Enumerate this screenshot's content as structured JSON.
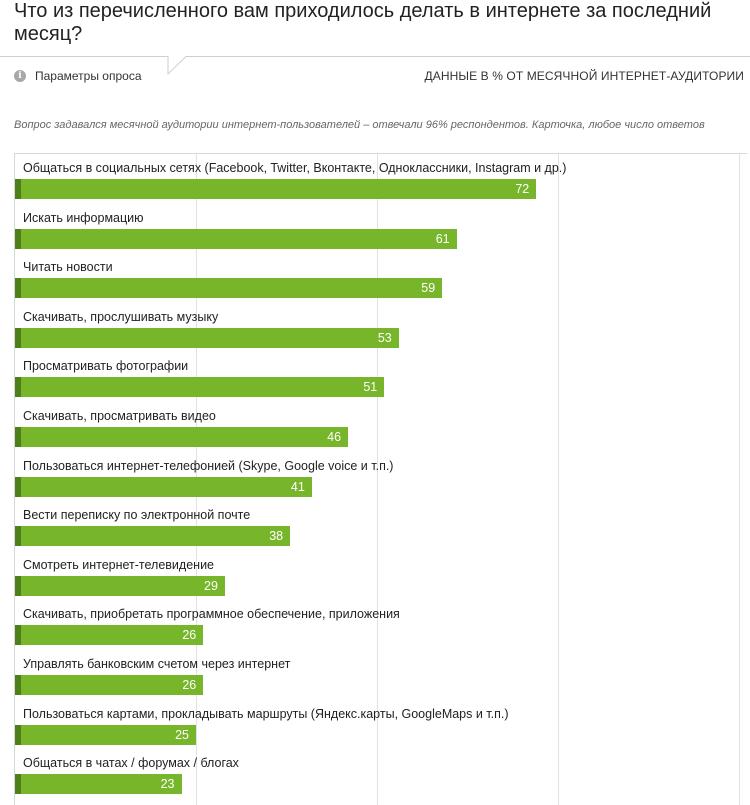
{
  "header": {
    "title": "Что из перечисленного вам приходилось делать в интернете за последний месяц?",
    "params_label": "Параметры опроса",
    "info_icon": "info-icon",
    "units_label": "ДАННЫЕ В % ОТ МЕСЯЧНОЙ ИНТЕРНЕТ-АУДИТОРИИ"
  },
  "note": "Вопрос задавался месячной аудитории интернет-пользователей – отвечали 96% респондентов. Карточка, любое число ответов",
  "colors": {
    "bar": "#77b62b",
    "bar_accent": "#4f7f1a",
    "grid": "#e2e2e2"
  },
  "chart_data": {
    "type": "bar",
    "orientation": "horizontal",
    "title": "Что из перечисленного вам приходилось делать в интернете за последний месяц?",
    "xlabel": "",
    "ylabel": "",
    "xlim": [
      0,
      100
    ],
    "grid": true,
    "categories": [
      "Общаться в социальных сетях (Facebook, Twitter, Вконтакте, Одноклассники, Instagram и др.)",
      "Искать информацию",
      "Читать новости",
      "Скачивать, прослушивать музыку",
      "Просматривать фотографии",
      "Скачивать, просматривать видео",
      "Пользоваться интернет-телефонией (Skype, Google voice и т.п.)",
      "Вести переписку по электронной почте",
      "Смотреть интернет-телевидение",
      "Скачивать, приобретать программное обеспечение, приложения",
      "Управлять банковским счетом через интернет",
      "Пользоваться картами, прокладывать маршруты (Яндекс.карты, GoogleMaps и т.п.)",
      "Общаться в чатах / форумах / блогах"
    ],
    "values": [
      72,
      61,
      59,
      53,
      51,
      46,
      41,
      38,
      29,
      26,
      26,
      25,
      23
    ]
  }
}
